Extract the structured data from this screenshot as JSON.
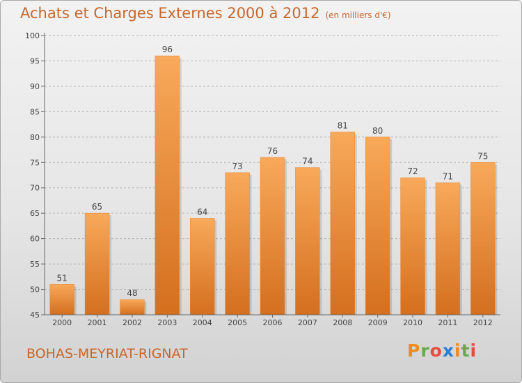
{
  "header": {
    "title": "Achats et Charges Externes 2000 à 2012",
    "subtitle": "(en milliers d'€)"
  },
  "footer": {
    "commune": "BOHAS-MEYRIAT-RIGNAT",
    "logo": [
      "P",
      "r",
      "o",
      "x",
      "i",
      "t",
      "i"
    ]
  },
  "colors": {
    "title": "#c8662a",
    "bar_top": "#f8a95a",
    "bar_bottom": "#d46f1e",
    "logo": [
      "#f08a1c",
      "#6aa84f",
      "#e94b3c",
      "#2a7fd4",
      "#f08a1c",
      "#6aa84f",
      "#e94b3c"
    ]
  },
  "chart_data": {
    "type": "bar",
    "categories": [
      "2000",
      "2001",
      "2002",
      "2003",
      "2004",
      "2005",
      "2006",
      "2007",
      "2008",
      "2009",
      "2010",
      "2011",
      "2012"
    ],
    "values": [
      51,
      65,
      48,
      96,
      64,
      73,
      76,
      74,
      81,
      80,
      72,
      71,
      75
    ],
    "ylim": [
      45,
      100
    ],
    "yticks": [
      45,
      50,
      55,
      60,
      65,
      70,
      75,
      80,
      85,
      90,
      95,
      100
    ],
    "grid": "horizontal-dashed"
  }
}
